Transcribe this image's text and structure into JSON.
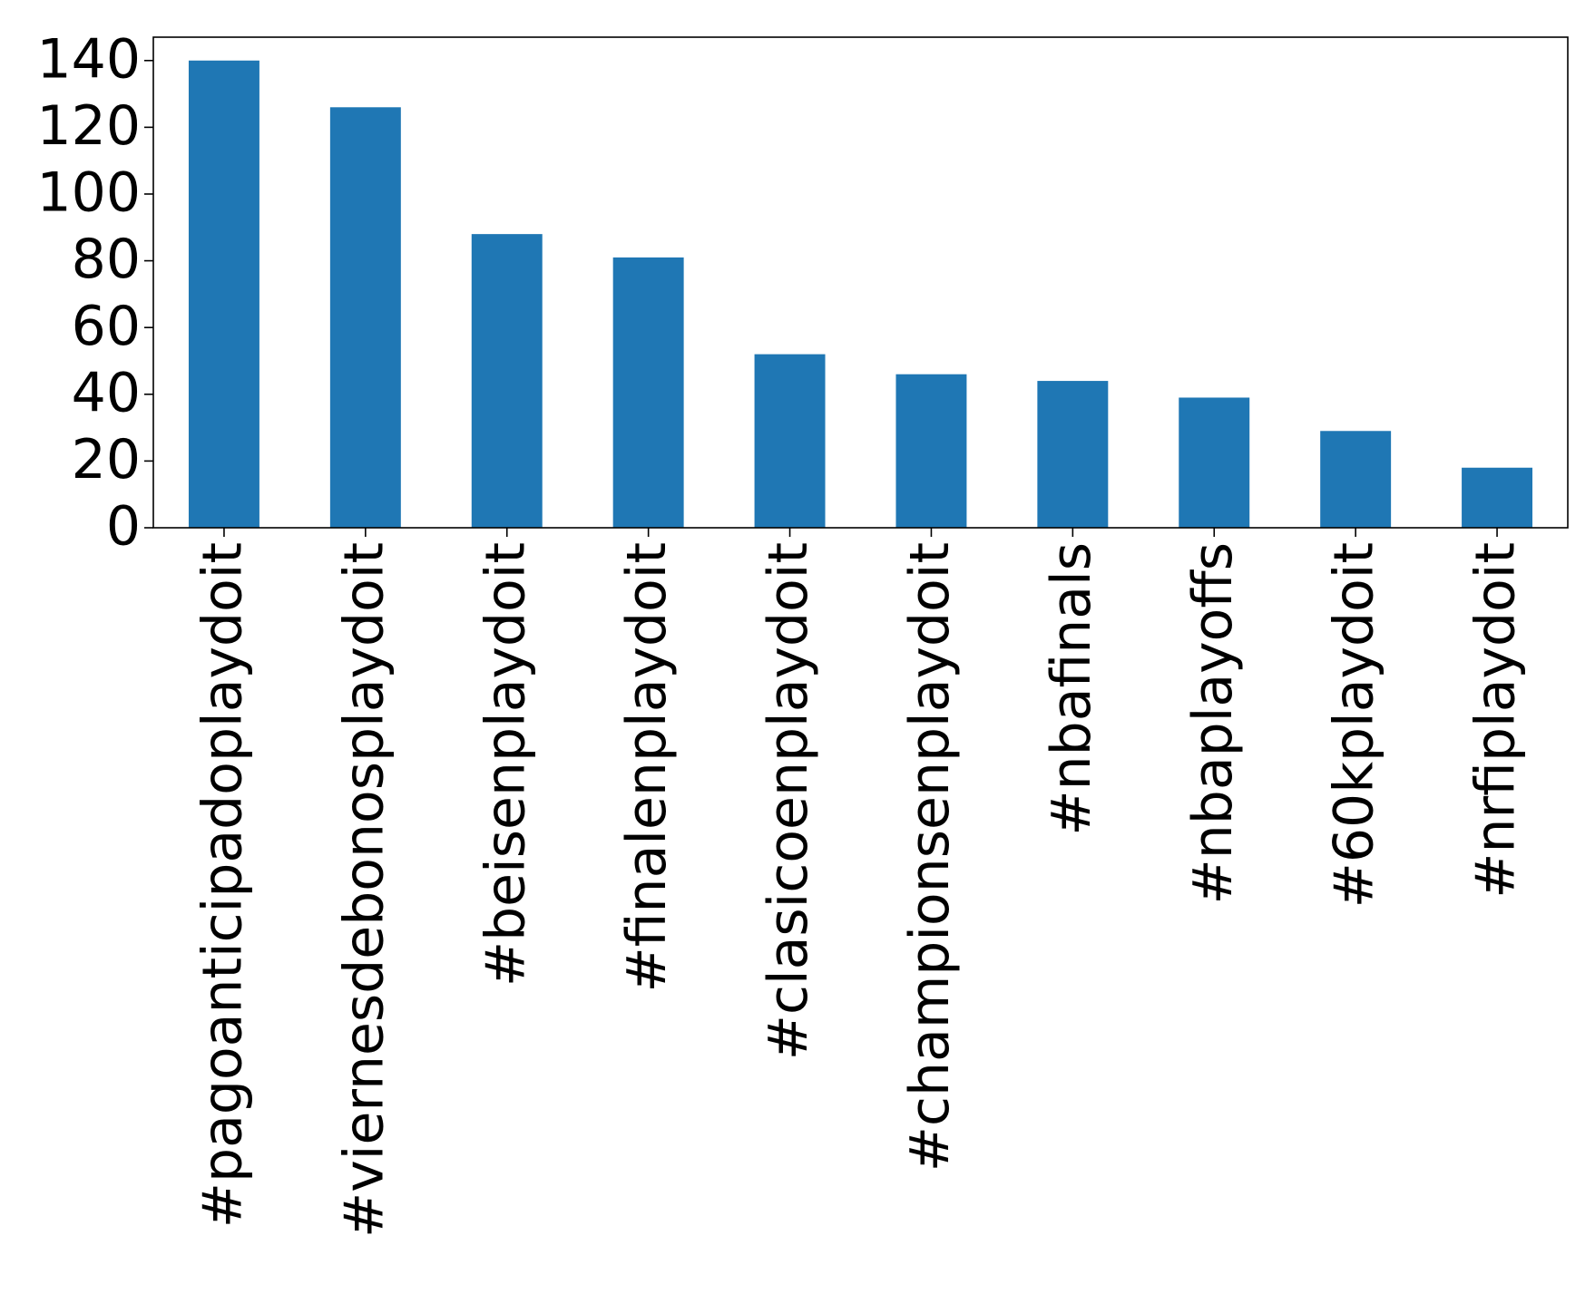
{
  "chart_data": {
    "type": "bar",
    "categories": [
      "#pagoanticipadoplaydoit",
      "#viernesdebonosplaydoit",
      "#beisenplaydoit",
      "#finalenplaydoit",
      "#clasicoenplaydoit",
      "#championsenplaydoit",
      "#nbafinals",
      "#nbaplayoffs",
      "#60kplaydoit",
      "#nrfiplaydoit"
    ],
    "values": [
      140,
      126,
      88,
      81,
      52,
      46,
      44,
      39,
      29,
      18
    ],
    "color": "#1f77b4",
    "ylim": [
      0,
      147
    ],
    "yticks": [
      0,
      20,
      40,
      60,
      80,
      100,
      120,
      140
    ],
    "grid": false
  }
}
